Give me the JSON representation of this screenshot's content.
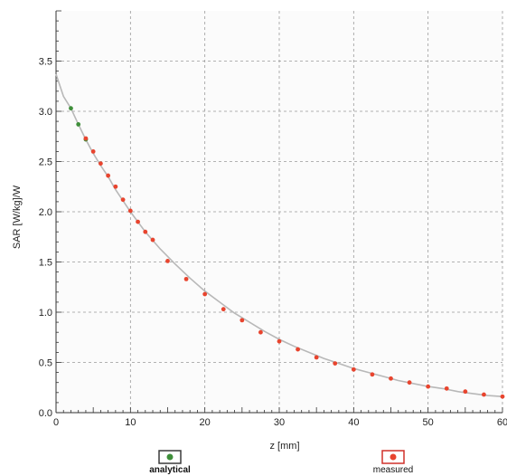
{
  "chart_data": {
    "type": "scatter",
    "xlabel": "z [mm]",
    "ylabel": "SAR [W/kg]/W",
    "xlim": [
      0,
      60
    ],
    "ylim": [
      0,
      4
    ],
    "x_ticks": [
      0,
      10,
      20,
      30,
      40,
      50,
      60
    ],
    "y_ticks": [
      0.0,
      0.5,
      1.0,
      1.5,
      2.0,
      2.5,
      3.0,
      3.5
    ],
    "x_tick_labels": [
      "0",
      "10",
      "20",
      "30",
      "40",
      "50",
      "60"
    ],
    "y_tick_labels": [
      "0.0",
      "0.5",
      "1.0",
      "1.5",
      "2.0",
      "2.5",
      "3.0",
      "3.5"
    ],
    "grid": true,
    "legend_position": "bottom",
    "series": [
      {
        "name": "analytical",
        "style": "line-with-markers",
        "color": "#3f8f3a",
        "x": [
          0,
          1,
          2,
          3,
          4,
          5,
          6,
          7,
          8,
          9,
          10,
          12,
          14,
          16,
          18,
          20,
          22,
          24,
          26,
          28,
          30,
          32,
          34,
          36,
          38,
          40,
          42,
          44,
          46,
          48,
          50,
          52,
          54,
          56,
          58,
          60
        ],
        "values": [
          3.37,
          3.15,
          3.03,
          2.87,
          2.72,
          2.58,
          2.46,
          2.35,
          2.22,
          2.11,
          2.0,
          1.8,
          1.63,
          1.48,
          1.34,
          1.21,
          1.1,
          0.99,
          0.9,
          0.81,
          0.73,
          0.66,
          0.6,
          0.54,
          0.49,
          0.44,
          0.4,
          0.36,
          0.32,
          0.29,
          0.26,
          0.24,
          0.21,
          0.19,
          0.17,
          0.16
        ]
      },
      {
        "name": "measured",
        "style": "markers",
        "color": "#e8442e",
        "x": [
          4,
          5,
          6,
          7,
          8,
          9,
          10,
          11,
          12,
          13,
          15,
          17.5,
          20,
          22.5,
          25,
          27.5,
          30,
          32.5,
          35,
          37.5,
          40,
          42.5,
          45,
          47.5,
          50,
          52.5,
          55,
          57.5,
          60
        ],
        "values": [
          2.73,
          2.6,
          2.48,
          2.36,
          2.25,
          2.12,
          2.01,
          1.9,
          1.8,
          1.72,
          1.51,
          1.33,
          1.18,
          1.03,
          0.92,
          0.8,
          0.71,
          0.63,
          0.55,
          0.49,
          0.43,
          0.38,
          0.34,
          0.3,
          0.26,
          0.24,
          0.21,
          0.18,
          0.16
        ]
      }
    ],
    "legend": [
      {
        "label": "analytical",
        "marker_fill": "#3f8f3a",
        "box_color": "#3a3a3a"
      },
      {
        "label": "measured",
        "marker_fill": "#e8442e",
        "box_color": "#d0302a"
      }
    ]
  },
  "colors": {
    "axis": "#333333",
    "grid": "#9a9a9a",
    "curve": "#b8b8b8",
    "analytical_marker": "#3f8f3a",
    "measured_marker": "#e8442e"
  }
}
